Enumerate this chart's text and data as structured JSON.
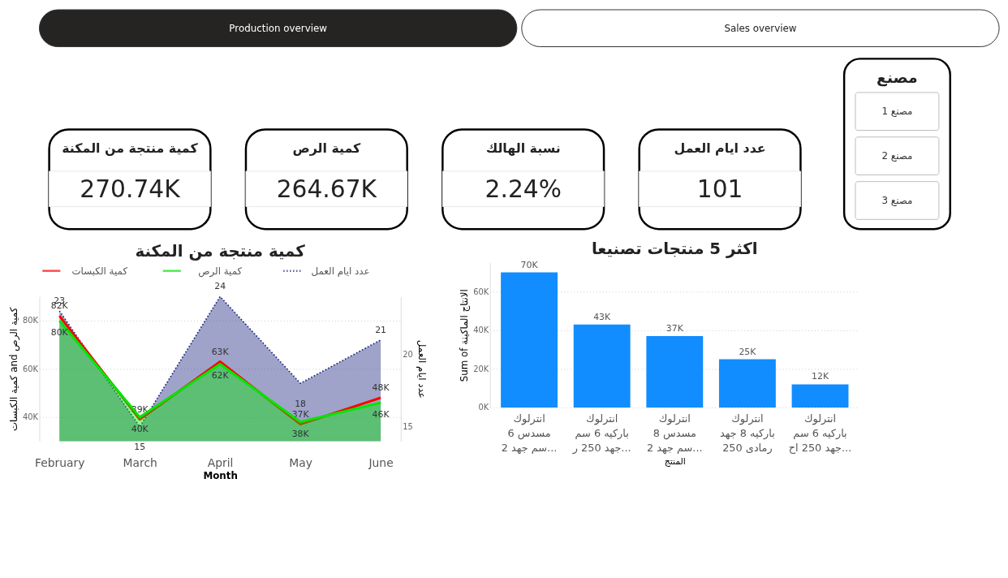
{
  "chart_data": [
    {
      "type": "other",
      "categories": [
        "Production overview",
        "Sales overview"
      ],
      "colors": [
        "#252423",
        "#ffffff"
      ]
    },
    {
      "type": "other",
      "categories": [
        "كمية منتجة من المكنة",
        "كمية الرص",
        "نسبة الهالك",
        "عدد ايام العمل"
      ],
      "value_labels": [
        "270.74K",
        "264.67K",
        "2.24%",
        "101"
      ]
    },
    {
      "type": "other",
      "title": "مصنع",
      "categories": [
        "مصنع 1",
        "مصنع 2",
        "مصنع 3"
      ]
    },
    {
      "type": "line",
      "title": "كمية منتجة من المكنة",
      "categories": [
        "February",
        "March",
        "April",
        "May",
        "June"
      ],
      "xlabel": "Month",
      "ylabel": "كمية الكبسات and كمية الرص",
      "y2label": "عدد ايام العمل",
      "ylim": [
        30000,
        90000
      ],
      "yticks": [
        {
          "value": 40000,
          "label": "40K"
        },
        {
          "value": 60000,
          "label": "60K"
        },
        {
          "value": 80000,
          "label": "80K"
        }
      ],
      "y2lim": [
        14,
        24
      ],
      "y2ticks": [
        15,
        20
      ],
      "grid": "y",
      "legend": "top",
      "series": [
        {
          "name": "كمية الكبسات",
          "type": "line",
          "color": "#ff0000",
          "values": [
            82000,
            39000,
            63000,
            37000,
            48000
          ],
          "value_labels": [
            "82K",
            "39K",
            "63K",
            "37K",
            "48K"
          ]
        },
        {
          "name": "كمية الرص",
          "type": "area",
          "color": "#00e600",
          "values": [
            80000,
            40000,
            62000,
            38000,
            46000
          ],
          "value_labels": [
            "80K",
            "40K",
            "62K",
            "38K",
            "46K"
          ]
        },
        {
          "name": "عدد ايام العمل",
          "type": "area",
          "axis": "y2",
          "line_style": "dotted",
          "color": "#1a237e",
          "values": [
            23,
            15,
            24,
            18,
            21
          ],
          "value_labels": [
            "23",
            "15",
            "24",
            "18",
            "21"
          ]
        }
      ]
    },
    {
      "type": "bar",
      "title": "اكثر 5 منتجات تصنيعا",
      "categories": [
        "انترلوك\nمسدس 6\nسم جهد 2...",
        "انترلوك\nباركيه 6 سم\nجهد 250 ر...",
        "انترلوك\nمسدس 8\nسم جهد 2...",
        "انترلوك\nباركيه 8 جهد\nرمادى 250",
        "انترلوك\nباركيه 6 سم\nجهد 250 اح..."
      ],
      "values": [
        70000,
        43000,
        37000,
        25000,
        12000
      ],
      "value_labels": [
        "70K",
        "43K",
        "37K",
        "25K",
        "12K"
      ],
      "color": "#118dff",
      "xlabel": "المنتج",
      "ylabel": "Sum of الانتاج الماكينة",
      "ylim": [
        0,
        75000
      ],
      "yticks": [
        {
          "value": 0,
          "label": "0K"
        },
        {
          "value": 20000,
          "label": "20K"
        },
        {
          "value": 40000,
          "label": "40K"
        },
        {
          "value": 60000,
          "label": "60K"
        }
      ],
      "grid": "y"
    }
  ]
}
